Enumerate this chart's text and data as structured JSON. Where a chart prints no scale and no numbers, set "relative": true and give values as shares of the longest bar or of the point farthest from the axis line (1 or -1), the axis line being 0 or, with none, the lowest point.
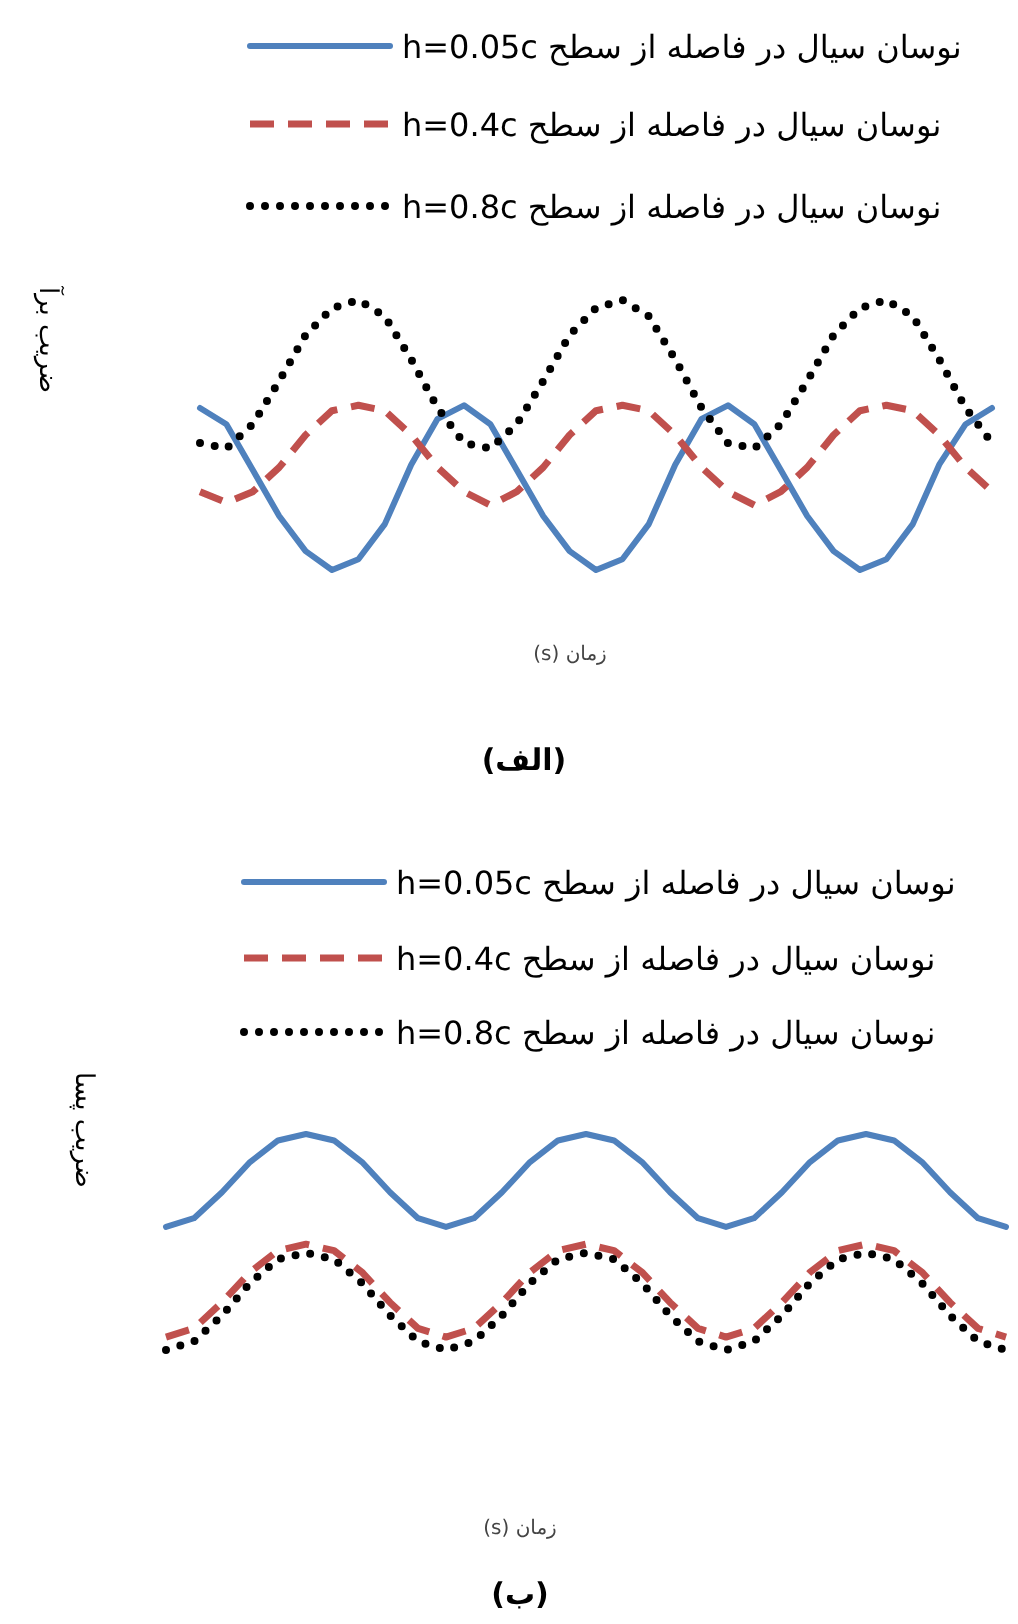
{
  "chart_data": [
    {
      "type": "line",
      "title": "(الف)",
      "xlabel": "زمان (s)",
      "ylabel": "ضریب برآ",
      "relative": true,
      "legend": "top",
      "grid": false,
      "categories": [
        null,
        null,
        null,
        null,
        null,
        null,
        null,
        null,
        null,
        null,
        null,
        null,
        null,
        null,
        null,
        null,
        null,
        null,
        null,
        null,
        null,
        null,
        null,
        null,
        null,
        null,
        null,
        null,
        null,
        null,
        null
      ],
      "series": [
        {
          "name": "نوسان سیال در فاصله از سطح h=0.05c",
          "color": "#4f81bd",
          "line_style": "solid",
          "values": [
            0.6,
            0.54,
            0.37,
            0.2,
            0.07,
            0.0,
            0.04,
            0.17,
            0.39,
            0.56,
            0.61,
            0.54,
            0.37,
            0.2,
            0.07,
            0.0,
            0.04,
            0.17,
            0.39,
            0.56,
            0.61,
            0.54,
            0.37,
            0.2,
            0.07,
            0.0,
            0.04,
            0.17,
            0.39,
            0.54,
            0.6
          ]
        },
        {
          "name": "نوسان سیال در فاصله از سطح h=0.4c",
          "color": "#c0504d",
          "line_style": "dashed",
          "values": [
            0.29,
            0.25,
            0.29,
            0.38,
            0.5,
            0.59,
            0.61,
            0.59,
            0.5,
            0.38,
            0.29,
            0.24,
            0.29,
            0.38,
            0.5,
            0.59,
            0.61,
            0.59,
            0.5,
            0.38,
            0.29,
            0.24,
            0.29,
            0.38,
            0.5,
            0.59,
            0.61,
            0.59,
            0.5,
            0.38,
            0.29
          ]
        },
        {
          "name": "نوسان سیال در فاصله از سطح h=0.8c",
          "color": "#000000",
          "line_style": "dotted",
          "values": [
            0.47,
            0.45,
            0.54,
            0.7,
            0.87,
            0.97,
            1.0,
            0.94,
            0.78,
            0.6,
            0.47,
            0.45,
            0.54,
            0.7,
            0.87,
            0.97,
            1.0,
            0.94,
            0.78,
            0.6,
            0.47,
            0.45,
            0.54,
            0.7,
            0.87,
            0.97,
            1.0,
            0.94,
            0.78,
            0.6,
            0.47
          ]
        }
      ]
    },
    {
      "type": "line",
      "title": "(ب)",
      "xlabel": "زمان (s)",
      "ylabel": "ضریب پسا",
      "relative": true,
      "legend": "top",
      "grid": false,
      "categories": [
        null,
        null,
        null,
        null,
        null,
        null,
        null,
        null,
        null,
        null,
        null,
        null,
        null,
        null,
        null,
        null,
        null,
        null,
        null,
        null,
        null,
        null,
        null,
        null,
        null,
        null,
        null,
        null,
        null,
        null,
        null
      ],
      "series": [
        {
          "name": "نوسان سیال در فاصله از سطح h=0.05c",
          "color": "#4f81bd",
          "line_style": "solid",
          "values": [
            0.57,
            0.61,
            0.73,
            0.87,
            0.97,
            1.0,
            0.97,
            0.87,
            0.73,
            0.61,
            0.57,
            0.61,
            0.73,
            0.87,
            0.97,
            1.0,
            0.97,
            0.87,
            0.73,
            0.61,
            0.57,
            0.61,
            0.73,
            0.87,
            0.97,
            1.0,
            0.97,
            0.87,
            0.73,
            0.61,
            0.57
          ]
        },
        {
          "name": "نوسان سیال در فاصله از سطح h=0.4c",
          "color": "#c0504d",
          "line_style": "dashed",
          "values": [
            0.06,
            0.1,
            0.22,
            0.36,
            0.46,
            0.49,
            0.46,
            0.36,
            0.22,
            0.1,
            0.06,
            0.1,
            0.22,
            0.36,
            0.46,
            0.49,
            0.46,
            0.36,
            0.22,
            0.1,
            0.06,
            0.1,
            0.22,
            0.36,
            0.46,
            0.49,
            0.46,
            0.36,
            0.22,
            0.1,
            0.06
          ]
        },
        {
          "name": "نوسان سیال در فاصله از سطح h=0.8c",
          "color": "#000000",
          "line_style": "dotted",
          "values": [
            0.0,
            0.04,
            0.16,
            0.31,
            0.42,
            0.45,
            0.42,
            0.31,
            0.16,
            0.04,
            0.0,
            0.04,
            0.16,
            0.31,
            0.42,
            0.45,
            0.42,
            0.31,
            0.16,
            0.04,
            0.0,
            0.04,
            0.16,
            0.31,
            0.42,
            0.45,
            0.42,
            0.31,
            0.16,
            0.04,
            0.0
          ]
        }
      ]
    }
  ]
}
